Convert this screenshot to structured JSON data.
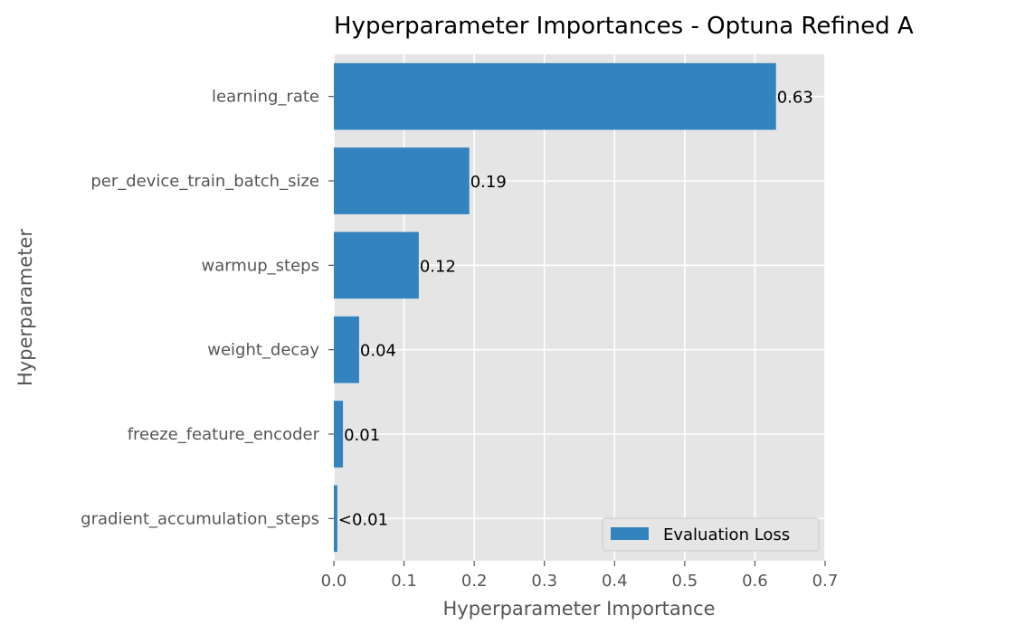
{
  "chart_data": {
    "type": "bar",
    "orientation": "horizontal",
    "title": "Hyperparameter Importances - Optuna Refined A",
    "xlabel": "Hyperparameter Importance",
    "ylabel": "Hyperparameter",
    "xlim": [
      0,
      0.7
    ],
    "xticks": [
      0.0,
      0.1,
      0.2,
      0.3,
      0.4,
      0.5,
      0.6,
      0.7
    ],
    "xtick_labels": [
      "0.0",
      "0.1",
      "0.2",
      "0.3",
      "0.4",
      "0.5",
      "0.6",
      "0.7"
    ],
    "categories": [
      "learning_rate",
      "per_device_train_batch_size",
      "warmup_steps",
      "weight_decay",
      "freeze_feature_encoder",
      "gradient_accumulation_steps"
    ],
    "series": [
      {
        "name": "Evaluation Loss",
        "color": "#3283BE",
        "values": [
          0.63,
          0.193,
          0.121,
          0.036,
          0.013,
          0.005
        ],
        "labels": [
          "0.63",
          "0.19",
          "0.12",
          "0.04",
          "0.01",
          "<0.01"
        ]
      }
    ],
    "grid": true,
    "legend": "bottom-right"
  }
}
